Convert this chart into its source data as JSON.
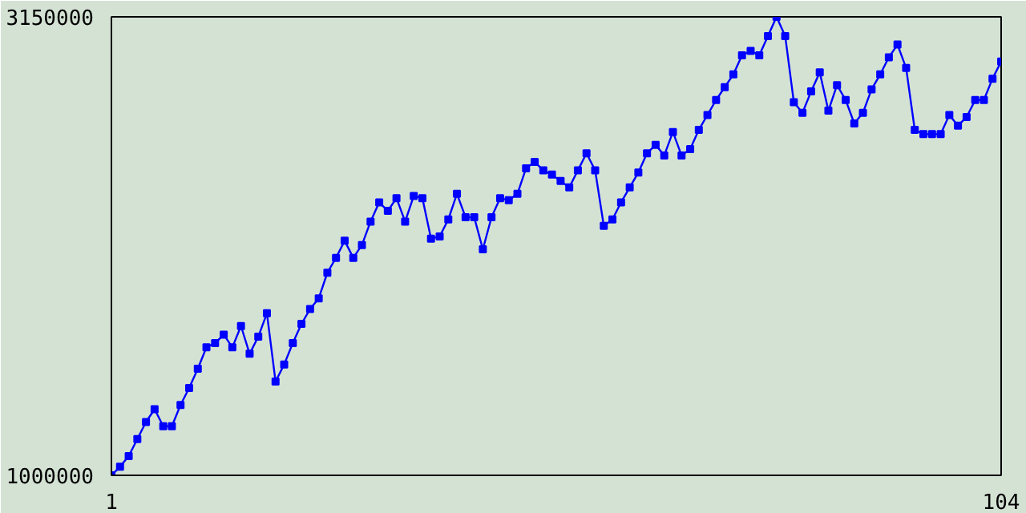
{
  "chart_data": {
    "type": "line",
    "x": [
      1,
      2,
      3,
      4,
      5,
      6,
      7,
      8,
      9,
      10,
      11,
      12,
      13,
      14,
      15,
      16,
      17,
      18,
      19,
      20,
      21,
      22,
      23,
      24,
      25,
      26,
      27,
      28,
      29,
      30,
      31,
      32,
      33,
      34,
      35,
      36,
      37,
      38,
      39,
      40,
      41,
      42,
      43,
      44,
      45,
      46,
      47,
      48,
      49,
      50,
      51,
      52,
      53,
      54,
      55,
      56,
      57,
      58,
      59,
      60,
      61,
      62,
      63,
      64,
      65,
      66,
      67,
      68,
      69,
      70,
      71,
      72,
      73,
      74,
      75,
      76,
      77,
      78,
      79,
      80,
      81,
      82,
      83,
      84,
      85,
      86,
      87,
      88,
      89,
      90,
      91,
      92,
      93,
      94,
      95,
      96,
      97,
      98,
      99,
      100,
      101,
      102,
      103,
      104
    ],
    "series": [
      {
        "color": "#0000ff",
        "values": [
          1000000,
          1040000,
          1090000,
          1170000,
          1250000,
          1310000,
          1230000,
          1230000,
          1330000,
          1410000,
          1500000,
          1600000,
          1620000,
          1660000,
          1600000,
          1700000,
          1570000,
          1650000,
          1760000,
          1440000,
          1520000,
          1620000,
          1710000,
          1780000,
          1830000,
          1950000,
          2020000,
          2100000,
          2020000,
          2080000,
          2190000,
          2280000,
          2240000,
          2300000,
          2190000,
          2310000,
          2300000,
          2110000,
          2120000,
          2200000,
          2320000,
          2210000,
          2210000,
          2060000,
          2210000,
          2300000,
          2290000,
          2320000,
          2440000,
          2470000,
          2430000,
          2410000,
          2380000,
          2350000,
          2430000,
          2510000,
          2430000,
          2170000,
          2200000,
          2280000,
          2350000,
          2420000,
          2510000,
          2550000,
          2500000,
          2610000,
          2500000,
          2530000,
          2620000,
          2690000,
          2760000,
          2820000,
          2880000,
          2970000,
          2990000,
          2970000,
          3060000,
          3150000,
          3060000,
          2750000,
          2700000,
          2800000,
          2890000,
          2710000,
          2830000,
          2760000,
          2650000,
          2700000,
          2810000,
          2880000,
          2960000,
          3020000,
          2910000,
          2620000,
          2600000,
          2600000,
          2600000,
          2690000,
          2640000,
          2680000,
          2760000,
          2760000,
          2860000,
          2940000
        ]
      }
    ],
    "xlim": [
      1,
      104
    ],
    "ylim": [
      1000000,
      3150000
    ],
    "xticks": [
      1,
      104
    ],
    "yticks": [
      1000000,
      3150000
    ],
    "marker": "square",
    "line_style": "solid"
  }
}
